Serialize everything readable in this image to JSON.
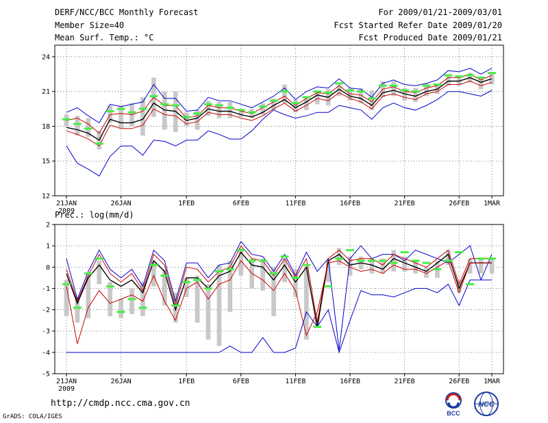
{
  "header": {
    "title": "DERF/NCC/BCC Monthly Forecast",
    "member_size": "Member Size=40",
    "variable": "Mean Surf. Temp.: °C",
    "period": "For 2009/01/21-2009/03/01",
    "fcst_started": "Fcst Started Refer Date 2009/01/20",
    "fcst_produced": "Fcst Produced Date 2009/01/21"
  },
  "footer": {
    "url": "http://cmdp.ncc.cma.gov.cn",
    "credit": "GrADS: COLA/IGES",
    "logo_bcc": "BCC",
    "logo_ncc": "NCC"
  },
  "colors": {
    "max_min": "#0000cc",
    "mean": "#000000",
    "spread": "#cc0000",
    "box": "#c8c8c8",
    "obs_marker": "#44ee44"
  },
  "chart_data": [
    {
      "type": "line",
      "name": "temperature",
      "title": "",
      "ylabel": "Mean Surf. Temp.: °C",
      "ylim": [
        12,
        25
      ],
      "yticks": [
        12,
        15,
        18,
        21,
        24
      ],
      "xlim": [
        1,
        40
      ],
      "xticks": [
        {
          "day": 1,
          "label": "21JAN"
        },
        {
          "day": 6,
          "label": "26JAN"
        },
        {
          "day": 12,
          "label": "1FEB"
        },
        {
          "day": 17,
          "label": "6FEB"
        },
        {
          "day": 22,
          "label": "11FEB"
        },
        {
          "day": 27,
          "label": "16FEB"
        },
        {
          "day": 32,
          "label": "21FEB"
        },
        {
          "day": 37,
          "label": "26FEB"
        },
        {
          "day": 40,
          "label": "1MAR"
        }
      ],
      "year_label": "2009",
      "grid": true,
      "series": [
        {
          "name": "max",
          "values": [
            19.2,
            19.6,
            18.9,
            18.3,
            19.9,
            19.7,
            19.9,
            20.1,
            21.6,
            20.4,
            20.4,
            19.3,
            19.4,
            20.5,
            20.2,
            20.2,
            19.9,
            19.6,
            20.1,
            20.6,
            21.3,
            20.3,
            21.0,
            21.4,
            21.3,
            22.1,
            21.3,
            21.2,
            20.5,
            21.7,
            22.0,
            21.6,
            21.5,
            21.7,
            22.0,
            22.8,
            22.7,
            23.0,
            22.5,
            23.0
          ]
        },
        {
          "name": "upper",
          "values": [
            18.5,
            18.7,
            18.2,
            17.4,
            19.0,
            19.1,
            19.0,
            19.3,
            20.5,
            19.8,
            19.8,
            18.7,
            18.9,
            19.8,
            19.6,
            19.6,
            19.3,
            19.1,
            19.6,
            20.1,
            20.6,
            19.8,
            20.4,
            20.9,
            20.8,
            21.5,
            20.8,
            20.7,
            20.1,
            21.2,
            21.4,
            21.0,
            20.9,
            21.3,
            21.5,
            22.2,
            22.2,
            22.5,
            22.0,
            22.4
          ]
        },
        {
          "name": "mean",
          "values": [
            17.9,
            17.7,
            17.4,
            16.8,
            18.6,
            18.3,
            18.3,
            18.6,
            20.0,
            19.4,
            19.3,
            18.5,
            18.7,
            19.5,
            19.3,
            19.3,
            19.0,
            18.8,
            19.2,
            19.8,
            20.3,
            19.6,
            20.1,
            20.7,
            20.5,
            21.2,
            20.6,
            20.4,
            19.8,
            20.9,
            21.1,
            20.8,
            20.6,
            21.0,
            21.2,
            21.9,
            21.9,
            22.2,
            21.8,
            22.1
          ]
        },
        {
          "name": "lower",
          "values": [
            17.6,
            17.3,
            16.9,
            16.3,
            18.1,
            17.8,
            17.8,
            18.1,
            19.5,
            19.0,
            18.9,
            18.2,
            18.4,
            19.2,
            19.0,
            19.0,
            18.7,
            18.5,
            18.9,
            19.5,
            20.0,
            19.3,
            19.8,
            20.4,
            20.2,
            20.9,
            20.4,
            20.1,
            19.5,
            20.6,
            20.8,
            20.5,
            20.3,
            20.8,
            21.0,
            21.6,
            21.6,
            21.9,
            21.5,
            21.8
          ]
        },
        {
          "name": "min",
          "values": [
            16.3,
            14.8,
            14.3,
            13.7,
            15.4,
            16.3,
            16.3,
            15.5,
            16.8,
            16.7,
            16.3,
            16.8,
            16.8,
            17.6,
            17.3,
            16.9,
            16.9,
            17.6,
            18.6,
            19.4,
            19.0,
            18.7,
            18.9,
            19.2,
            19.2,
            19.8,
            19.6,
            19.4,
            18.6,
            19.6,
            20.0,
            19.6,
            19.4,
            19.8,
            20.3,
            21.0,
            21.0,
            20.8,
            20.6,
            21.1
          ]
        }
      ],
      "box_low": [
        18.0,
        17.2,
        17.1,
        16.0,
        18.3,
        17.8,
        18.0,
        17.2,
        18.8,
        17.7,
        17.5,
        18.0,
        17.7,
        18.9,
        18.7,
        18.7,
        18.8,
        18.7,
        19.0,
        19.4,
        20.0,
        19.2,
        19.4,
        19.9,
        19.8,
        20.6,
        20.2,
        20.0,
        19.4,
        20.5,
        20.6,
        20.2,
        20.1,
        20.6,
        20.8,
        21.5,
        21.5,
        21.8,
        21.2,
        21.6
      ],
      "box_high": [
        19.0,
        18.9,
        18.7,
        17.6,
        19.8,
        19.8,
        20.0,
        20.5,
        22.2,
        21.0,
        21.0,
        19.2,
        19.4,
        20.2,
        20.1,
        20.1,
        19.5,
        19.5,
        20.0,
        20.4,
        21.6,
        20.3,
        20.6,
        21.0,
        21.2,
        21.6,
        21.3,
        21.3,
        21.1,
        21.9,
        21.9,
        21.3,
        21.3,
        21.7,
        21.6,
        22.4,
        22.4,
        22.6,
        22.2,
        22.7
      ],
      "observed": [
        18.6,
        18.2,
        17.8,
        16.5,
        19.3,
        19.5,
        19.2,
        19.5,
        20.6,
        19.9,
        19.8,
        18.8,
        19.1,
        19.9,
        19.8,
        19.6,
        19.4,
        19.2,
        19.7,
        20.2,
        21.0,
        20.0,
        20.5,
        21.0,
        20.9,
        21.7,
        21.1,
        21.0,
        20.4,
        21.5,
        21.5,
        21.1,
        21.0,
        21.5,
        21.6,
        22.4,
        22.3,
        22.4,
        22.2,
        22.6
      ]
    },
    {
      "type": "line",
      "name": "precipitation",
      "title": "",
      "ylabel": "Prec.: log(mm/d)",
      "ylim": [
        -5,
        2
      ],
      "yticks": [
        -5,
        -4,
        -3,
        -2,
        -1,
        0,
        1,
        2
      ],
      "xlim": [
        1,
        40
      ],
      "xticks": [
        {
          "day": 1,
          "label": "21JAN"
        },
        {
          "day": 6,
          "label": "26JAN"
        },
        {
          "day": 12,
          "label": "1FEB"
        },
        {
          "day": 17,
          "label": "6FEB"
        },
        {
          "day": 22,
          "label": "11FEB"
        },
        {
          "day": 27,
          "label": "16FEB"
        },
        {
          "day": 32,
          "label": "21FEB"
        },
        {
          "day": 37,
          "label": "26FEB"
        },
        {
          "day": 40,
          "label": "1MAR"
        }
      ],
      "year_label": "2009",
      "grid": true,
      "series": [
        {
          "name": "max",
          "values": [
            0.4,
            -1.5,
            -0.2,
            0.8,
            -0.1,
            -0.5,
            -0.1,
            -0.9,
            0.8,
            0.3,
            -1.6,
            0.2,
            0.2,
            -0.5,
            0.1,
            0.2,
            1.2,
            0.6,
            0.5,
            -0.2,
            0.6,
            -0.4,
            0.7,
            -0.2,
            0.4,
            -3.9,
            0.4,
            1.0,
            0.4,
            0.6,
            0.6,
            0.3,
            0.8,
            0.6,
            0.4,
            0.2,
            0.6,
            1.0,
            -0.6,
            0.6
          ]
        },
        {
          "name": "upper",
          "values": [
            -0.1,
            -1.6,
            -0.4,
            0.6,
            -0.3,
            -0.7,
            -0.3,
            -1.1,
            0.6,
            0.1,
            -1.8,
            0.0,
            -0.1,
            -0.7,
            -0.2,
            0.0,
            1.0,
            0.4,
            0.3,
            -0.4,
            0.4,
            -0.5,
            0.4,
            -2.6,
            0.4,
            0.8,
            0.3,
            0.4,
            0.4,
            0.1,
            0.6,
            0.4,
            0.2,
            0.0,
            0.4,
            0.8,
            -0.8,
            0.4,
            0.4,
            0.4
          ]
        },
        {
          "name": "mean",
          "values": [
            -0.3,
            -1.7,
            -0.5,
            0.1,
            -0.6,
            -0.9,
            -0.6,
            -1.2,
            0.3,
            -0.2,
            -2.0,
            -0.5,
            -0.5,
            -1.0,
            -0.4,
            -0.2,
            0.7,
            0.1,
            0.0,
            -0.6,
            0.1,
            -0.7,
            0.0,
            -2.8,
            0.3,
            0.6,
            0.1,
            0.2,
            0.1,
            -0.1,
            0.4,
            0.2,
            0.0,
            -0.2,
            0.2,
            0.6,
            -1.0,
            0.2,
            0.2,
            0.2
          ]
        },
        {
          "name": "lower",
          "values": [
            -0.9,
            -3.6,
            -1.9,
            -1.1,
            -1.7,
            -1.5,
            -1.3,
            -1.6,
            -0.4,
            -1.6,
            -2.5,
            -1.0,
            -0.7,
            -1.5,
            -0.8,
            -0.6,
            0.3,
            -0.3,
            -0.6,
            -1.1,
            -0.3,
            -1.1,
            -3.2,
            -2.1,
            0.2,
            0.3,
            0.0,
            -0.2,
            -0.1,
            -0.3,
            0.1,
            -0.1,
            -0.1,
            -0.3,
            0.0,
            0.3,
            -1.2,
            0.2,
            0.2,
            0.2
          ]
        },
        {
          "name": "min",
          "values": [
            -4.0,
            -4.0,
            -4.0,
            -4.0,
            -4.0,
            -4.0,
            -4.0,
            -4.0,
            -4.0,
            -4.0,
            -4.0,
            -4.0,
            -4.0,
            -4.0,
            -4.0,
            -3.7,
            -4.0,
            -4.0,
            -3.3,
            -4.0,
            -4.0,
            -3.8,
            -2.1,
            -2.8,
            -2.0,
            -4.0,
            -2.5,
            -1.1,
            -1.3,
            -1.3,
            -1.4,
            -1.2,
            -1.0,
            -1.0,
            -1.2,
            -0.8,
            -1.8,
            -0.6,
            -0.6,
            -0.6
          ]
        }
      ],
      "box_low": [
        -2.3,
        -2.6,
        -2.4,
        -0.8,
        -2.3,
        -2.4,
        -2.2,
        -2.3,
        -0.9,
        -1.8,
        -2.6,
        -1.4,
        -2.6,
        -3.4,
        -3.7,
        -2.1,
        -0.4,
        -1.0,
        -1.1,
        -2.3,
        -0.7,
        -1.4,
        -3.4,
        -2.2,
        -0.7,
        0.1,
        -0.4,
        -0.1,
        -0.3,
        -0.3,
        -0.2,
        -0.2,
        -0.3,
        -0.5,
        -0.5,
        0.1,
        -1.2,
        -0.3,
        -0.3,
        -0.3
      ],
      "box_high": [
        -0.6,
        -1.4,
        -0.3,
        0.3,
        -0.7,
        -1.5,
        -1.0,
        -0.7,
        0.3,
        -0.1,
        -1.2,
        -0.5,
        -0.4,
        -0.8,
        0.1,
        0.3,
        0.9,
        0.4,
        0.4,
        0.0,
        0.4,
        -0.1,
        0.0,
        -2.7,
        0.3,
        0.9,
        0.5,
        0.5,
        0.4,
        0.4,
        0.8,
        0.5,
        0.3,
        0.0,
        0.3,
        0.8,
        -0.6,
        0.4,
        0.4,
        0.4
      ],
      "observed": [
        -0.8,
        -1.9,
        -0.3,
        0.4,
        -0.9,
        -2.1,
        -1.5,
        -1.9,
        0.1,
        -0.4,
        -1.8,
        -0.7,
        -0.6,
        -1.0,
        -0.2,
        -0.1,
        0.8,
        0.3,
        0.3,
        -0.3,
        0.5,
        -0.5,
        0.1,
        -2.8,
        -0.9,
        0.4,
        0.8,
        0.3,
        0.3,
        0.3,
        0.2,
        0.7,
        0.3,
        0.2,
        -0.1,
        0.3,
        0.7,
        -0.8,
        0.4,
        0.4
      ]
    }
  ]
}
